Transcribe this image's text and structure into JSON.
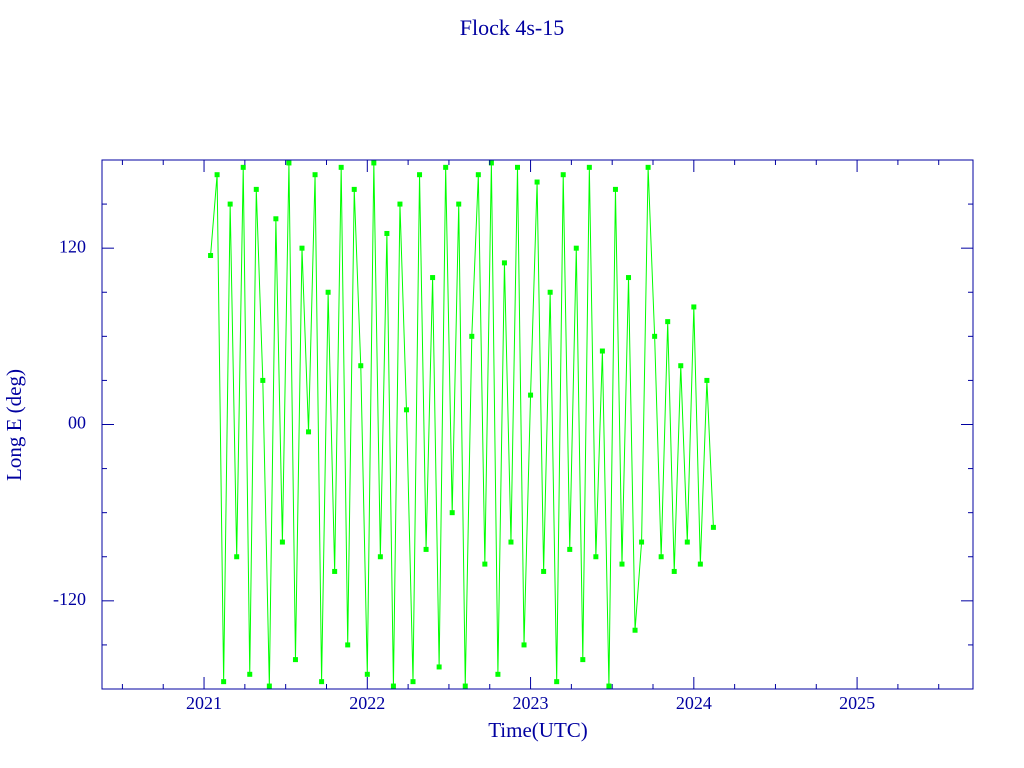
{
  "chart_data": {
    "type": "line",
    "title": "Flock 4s-15",
    "xlabel": "Time(UTC)",
    "ylabel": "Long E (deg)",
    "xlim": [
      2020.375,
      2025.71
    ],
    "xticks": [
      2021,
      2022,
      2023,
      2024,
      2025
    ],
    "xminorticks": [
      2020.5,
      2020.75,
      2021.25,
      2021.5,
      2021.75,
      2022.25,
      2022.5,
      2022.75,
      2023.25,
      2023.5,
      2023.75,
      2024.25,
      2024.5,
      2024.75,
      2025.25,
      2025.5
    ],
    "ylim": [
      -180,
      180
    ],
    "yticks": [
      -120,
      {
        "value": 0,
        "label": "00"
      },
      120
    ],
    "yminorticks": [
      -150,
      -90,
      -60,
      -30,
      30,
      60,
      90,
      150
    ],
    "axis_color": "#0000a0",
    "x": [
      2021.04,
      2021.08,
      2021.12,
      2021.16,
      2021.2,
      2021.24,
      2021.28,
      2021.32,
      2021.36,
      2021.4,
      2021.44,
      2021.48,
      2021.52,
      2021.56,
      2021.6,
      2021.64,
      2021.68,
      2021.72,
      2021.76,
      2021.8,
      2021.84,
      2021.88,
      2021.92,
      2021.96,
      2022.0,
      2022.04,
      2022.08,
      2022.12,
      2022.16,
      2022.2,
      2022.24,
      2022.28,
      2022.32,
      2022.36,
      2022.4,
      2022.44,
      2022.48,
      2022.52,
      2022.56,
      2022.6,
      2022.64,
      2022.68,
      2022.72,
      2022.76,
      2022.8,
      2022.84,
      2022.88,
      2022.92,
      2022.96,
      2023.0,
      2023.04,
      2023.08,
      2023.12,
      2023.16,
      2023.2,
      2023.24,
      2023.28,
      2023.32,
      2023.36,
      2023.4,
      2023.44,
      2023.48,
      2023.52,
      2023.56,
      2023.6,
      2023.64,
      2023.68,
      2023.72,
      2023.76,
      2023.8,
      2023.84,
      2023.88,
      2023.92,
      2023.96,
      2024.0,
      2024.04,
      2024.08,
      2024.12
    ],
    "series": [
      {
        "color": "#00ff00",
        "values": [
          115,
          170,
          -175,
          150,
          -90,
          175,
          -170,
          160,
          30,
          -178,
          140,
          -80,
          178,
          -160,
          120,
          -5,
          170,
          -175,
          90,
          -100,
          175,
          -150,
          160,
          40,
          -170,
          178,
          -90,
          130,
          -178,
          150,
          10,
          -175,
          170,
          -85,
          100,
          -165,
          175,
          -60,
          150,
          -178,
          60,
          170,
          -95,
          178,
          -170,
          110,
          -80,
          175,
          -150,
          20,
          165,
          -100,
          90,
          -175,
          170,
          -85,
          120,
          -160,
          175,
          -90,
          50,
          -178,
          160,
          -95,
          100,
          -140,
          -80,
          175,
          60,
          -90,
          70,
          -100,
          40,
          -80,
          80,
          -95,
          30,
          -70
        ]
      }
    ]
  }
}
